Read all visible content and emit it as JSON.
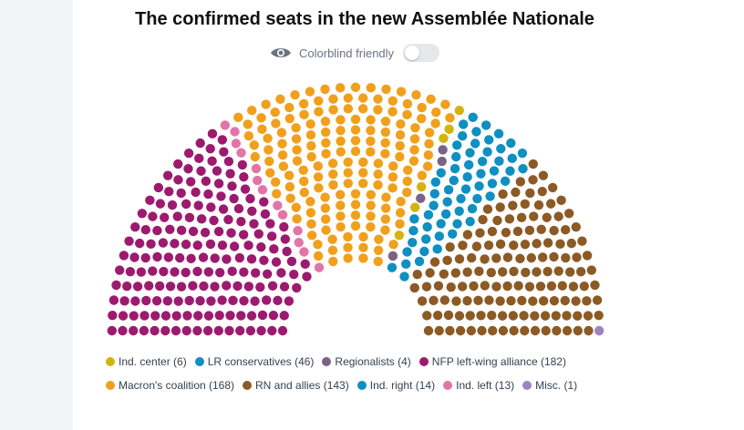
{
  "title": "The confirmed seats in the new Assemblée Nationale",
  "toggle": {
    "label": "Colorblind friendly",
    "on": false,
    "icon": "eye-icon"
  },
  "chart_data": {
    "type": "parliament",
    "title": "The confirmed seats in the new Assemblée Nationale",
    "total_seats": 577,
    "parties": [
      {
        "name": "NFP left-wing alliance",
        "seats": 182,
        "color": "#9c1b6e"
      },
      {
        "name": "Ind. left",
        "seats": 13,
        "color": "#e275a8"
      },
      {
        "name": "Macron's coalition",
        "seats": 168,
        "color": "#f0a01c"
      },
      {
        "name": "Ind. center",
        "seats": 6,
        "color": "#d4b30f"
      },
      {
        "name": "Regionalists",
        "seats": 4,
        "color": "#7a6385"
      },
      {
        "name": "LR conservatives",
        "seats": 46,
        "color": "#0f8fc2"
      },
      {
        "name": "Ind. right",
        "seats": 14,
        "color": "#0f8fc2"
      },
      {
        "name": "RN and allies",
        "seats": 143,
        "color": "#8b5a25"
      },
      {
        "name": "Misc.",
        "seats": 1,
        "color": "#9f82c4"
      }
    ],
    "legend": {
      "row1": [
        {
          "label": "Ind. center (6)",
          "color": "#d4b30f"
        },
        {
          "label": "LR conservatives (46)",
          "color": "#0f8fc2"
        },
        {
          "label": "Regionalists (4)",
          "color": "#7a6385"
        },
        {
          "label": "NFP left-wing alliance (182)",
          "color": "#9c1b6e"
        }
      ],
      "row2": [
        {
          "label": "Macron's coalition (168)",
          "color": "#f0a01c"
        },
        {
          "label": "RN and allies (143)",
          "color": "#8b5a25"
        },
        {
          "label": "Ind. right (14)",
          "color": "#0f8fc2"
        },
        {
          "label": "Ind. left (13)",
          "color": "#e275a8"
        },
        {
          "label": "Misc. (1)",
          "color": "#9f82c4"
        }
      ]
    }
  }
}
